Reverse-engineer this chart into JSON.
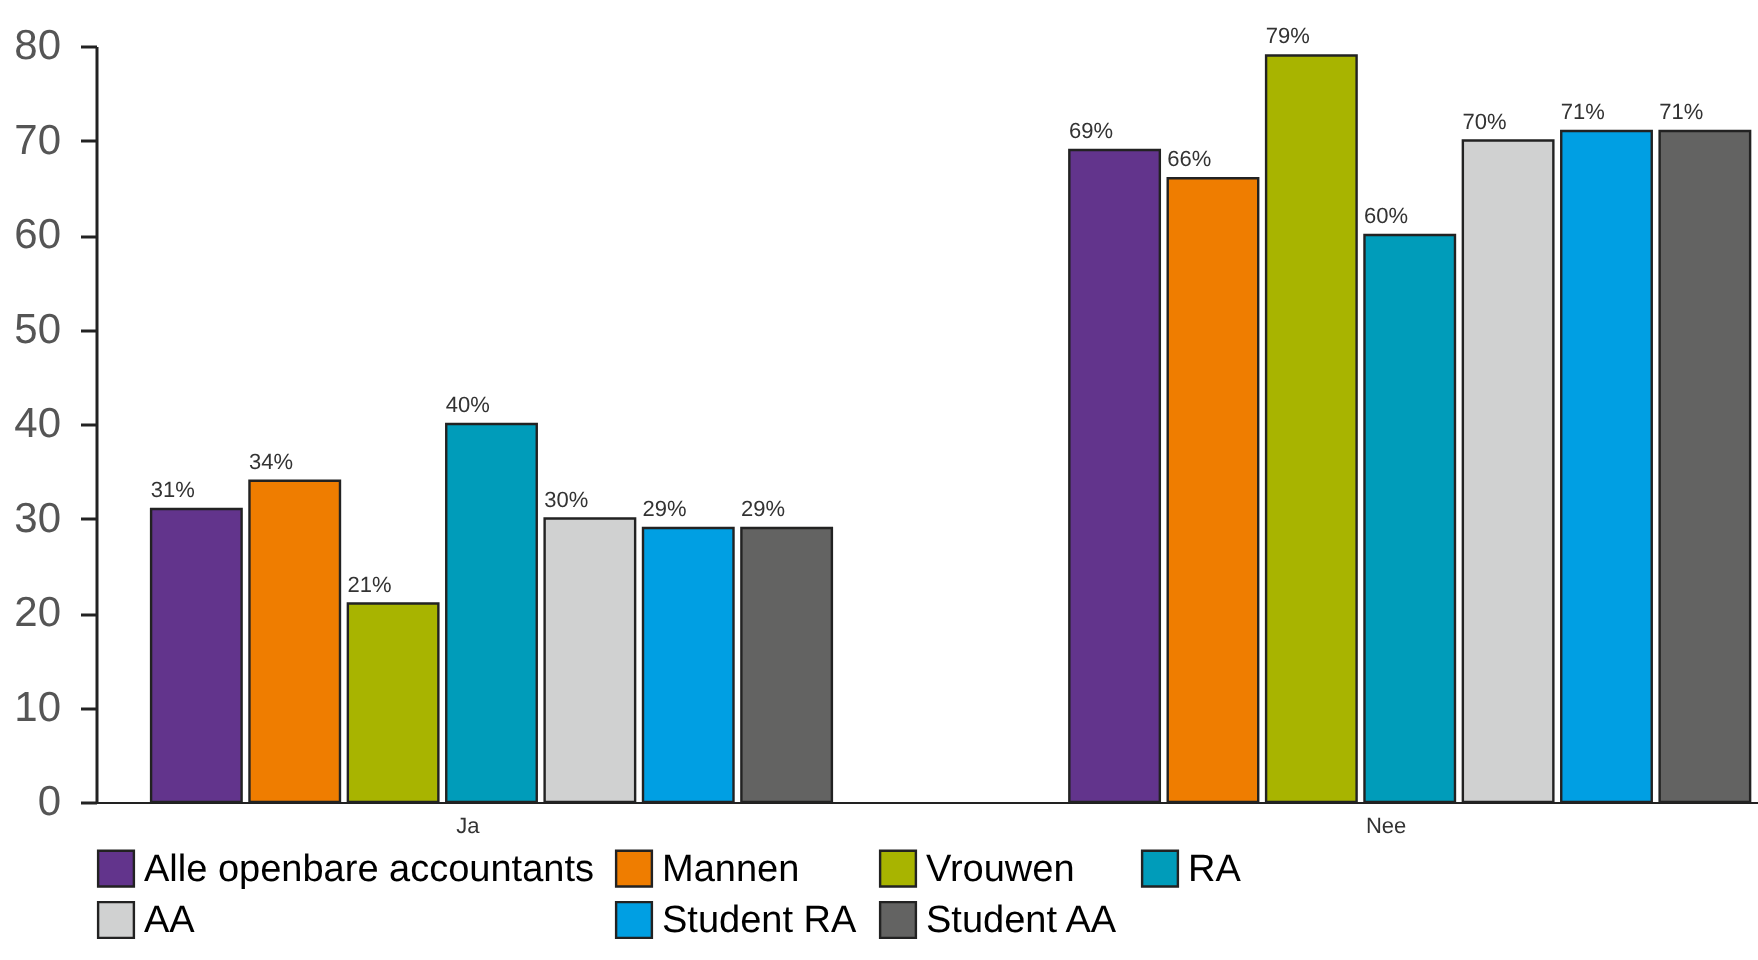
{
  "chart_data": {
    "type": "bar",
    "categories": [
      "Ja",
      "Nee"
    ],
    "ylim": [
      0,
      80
    ],
    "yticks": [
      0,
      10,
      20,
      30,
      40,
      50,
      60,
      70,
      80
    ],
    "grid": false,
    "legend": "bottom",
    "series": [
      {
        "name": "Alle openbare accountants",
        "color": "#62348c",
        "values": [
          31,
          69
        ],
        "value_labels": [
          "31%",
          "69%"
        ]
      },
      {
        "name": "Mannen",
        "color": "#ef7d00",
        "values": [
          34,
          66
        ],
        "value_labels": [
          "34%",
          "66%"
        ]
      },
      {
        "name": "Vrouwen",
        "color": "#a8b400",
        "values": [
          21,
          79
        ],
        "value_labels": [
          "21%",
          "79%"
        ]
      },
      {
        "name": "RA",
        "color": "#009cba",
        "values": [
          40,
          60
        ],
        "value_labels": [
          "40%",
          "60%"
        ]
      },
      {
        "name": "AA",
        "color": "#d0d1d1",
        "values": [
          30,
          70
        ],
        "value_labels": [
          "30%",
          "70%"
        ]
      },
      {
        "name": "Student RA",
        "color": "#009fe3",
        "values": [
          29,
          71
        ],
        "value_labels": [
          "29%",
          "71%"
        ]
      },
      {
        "name": "Student AA",
        "color": "#636362",
        "values": [
          29,
          71
        ],
        "value_labels": [
          "29%",
          "71%"
        ]
      }
    ]
  }
}
